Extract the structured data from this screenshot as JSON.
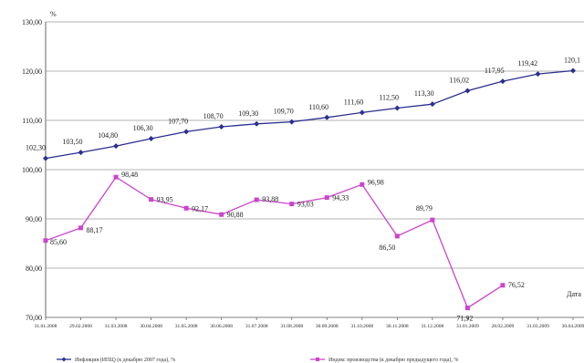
{
  "chart_data": {
    "type": "line",
    "ylabel": "%",
    "xlabel": "Дата",
    "ylim": [
      70,
      130
    ],
    "yticks": [
      "70,00",
      "80,00",
      "90,00",
      "100,00",
      "110,00",
      "120,00",
      "130,00"
    ],
    "categories": [
      "31.01.2008",
      "29.02.2008",
      "31.03.2008",
      "30.04.2008",
      "31.05.2008",
      "30.06.2008",
      "31.07.2008",
      "31.08.2008",
      "30.09.2008",
      "31.10.2008",
      "30.11.2008",
      "31.12.2008",
      "31.01.2009",
      "28.02.2009",
      "31.03.2009",
      "30.04.2009"
    ],
    "grid": true,
    "legend_position": "bottom",
    "series": [
      {
        "name": "Инфляция (ИПЦ) (к декабрю 2007 года), %",
        "color": "#2b2f8f",
        "marker": "diamond",
        "values": [
          102.3,
          103.5,
          104.8,
          106.3,
          107.7,
          108.7,
          109.3,
          109.7,
          110.6,
          111.6,
          112.5,
          113.3,
          116.02,
          117.95,
          119.42,
          120.1
        ],
        "labels": [
          "102,30",
          "103,50",
          "104,80",
          "106,30",
          "107,70",
          "108,70",
          "109,30",
          "109,70",
          "110,60",
          "111,60",
          "112,50",
          "113,30",
          "116,02",
          "117,95",
          "119,42",
          "120,1"
        ]
      },
      {
        "name": "Индекс производства (к декабрю предыдущего года), %",
        "color": "#cc44cc",
        "marker": "square",
        "values": [
          85.6,
          88.17,
          98.48,
          93.95,
          92.17,
          90.88,
          93.88,
          93.03,
          94.33,
          96.98,
          86.5,
          89.79,
          71.92,
          76.52,
          null,
          null
        ],
        "labels": [
          "85,60",
          "88,17",
          "98,48",
          "93,95",
          "92,17",
          "90,88",
          "93,88",
          "93,03",
          "94,33",
          "96,98",
          "86,50",
          "89,79",
          "71,92",
          "76,52",
          "",
          ""
        ]
      }
    ]
  }
}
